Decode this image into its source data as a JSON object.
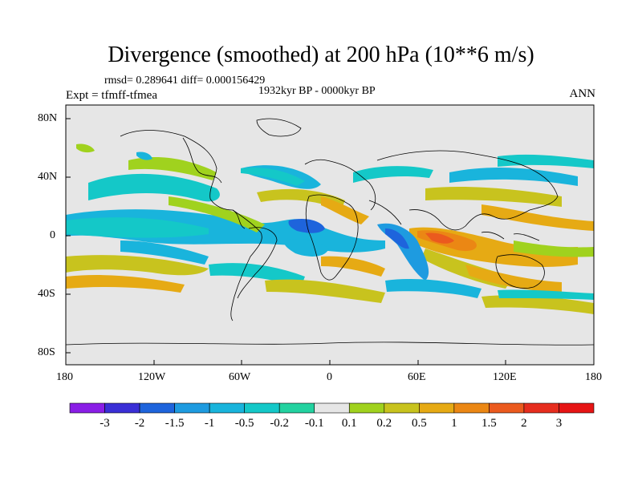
{
  "title": "Divergence (smoothed) at 200 hPa (10**6 m/s)",
  "stats_text": "rmsd= 0.289641  diff= 0.000156429",
  "period": "1932kyr BP - 0000kyr BP",
  "expt": "Expt = tfmff-tfmea",
  "season": "ANN",
  "lat_ticks": [
    "80N",
    "40N",
    "0",
    "40S",
    "80S"
  ],
  "lon_ticks": [
    "180",
    "120W",
    "60W",
    "0",
    "60E",
    "120E",
    "180"
  ],
  "colorbar": {
    "labels": [
      "-3",
      "-2",
      "-1.5",
      "-1",
      "-0.5",
      "-0.2",
      "-0.1",
      "0.1",
      "0.2",
      "0.5",
      "1",
      "1.5",
      "2",
      "3"
    ],
    "colors": [
      "#8a1ee6",
      "#3a2fd6",
      "#1e64dc",
      "#1e9be0",
      "#19b4dc",
      "#14c8c8",
      "#23d2a0",
      "#e6e6e6",
      "#a0d21e",
      "#c8c31e",
      "#e6aa14",
      "#eb8714",
      "#eb5a1e",
      "#e62d1e",
      "#e61414"
    ]
  },
  "colors": {
    "background_fill": "#e6e6e6",
    "coast": "#000000"
  }
}
